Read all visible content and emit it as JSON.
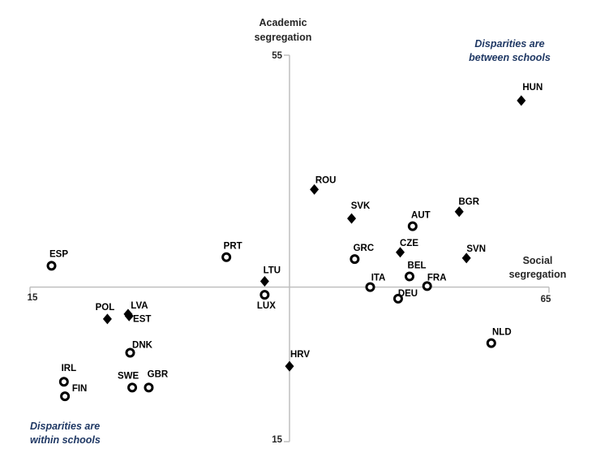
{
  "chart_data": {
    "type": "scatter",
    "title": "",
    "x_axis": {
      "label_lines": [
        "Social",
        "segregation"
      ],
      "min": 15,
      "max": 65,
      "min_label": "15",
      "max_label": "65"
    },
    "y_axis": {
      "label_lines": [
        "Academic",
        "segregation"
      ],
      "min": 15,
      "max": 55,
      "min_label": "15",
      "max_label": "55"
    },
    "axis_cross": {
      "x": 40,
      "y": 31
    },
    "colors": {
      "axis": "#bfbfbf",
      "marker": "#000000",
      "label": "#000000",
      "annotation": "#1f3864"
    },
    "legend_position": "none",
    "grid": false,
    "series": [
      {
        "name": "Disparities are between schools",
        "marker": "filled-diamond",
        "points": [
          {
            "code": "HUN",
            "x": 62.4,
            "y": 50.3,
            "label_dx": 14,
            "label_dy": -17
          },
          {
            "code": "ROU",
            "x": 42.4,
            "y": 41.1,
            "label_dx": 14,
            "label_dy": -12
          },
          {
            "code": "SVK",
            "x": 46.0,
            "y": 38.1,
            "label_dx": 11,
            "label_dy": -16
          },
          {
            "code": "BGR",
            "x": 56.4,
            "y": 38.8,
            "label_dx": 12,
            "label_dy": -13
          },
          {
            "code": "CZE",
            "x": 50.7,
            "y": 34.6,
            "label_dx": 11,
            "label_dy": -12
          },
          {
            "code": "SVN",
            "x": 57.1,
            "y": 34.0,
            "label_dx": 12,
            "label_dy": -12
          },
          {
            "code": "LTU",
            "x": 37.6,
            "y": 31.6,
            "label_dx": 9,
            "label_dy": -14
          },
          {
            "code": "POL",
            "x": 22.4,
            "y": 27.7,
            "label_dx": -3,
            "label_dy": -15
          },
          {
            "code": "LVA",
            "x": 24.4,
            "y": 28.2,
            "label_dx": 14,
            "label_dy": -11
          },
          {
            "code": "EST",
            "x": 24.5,
            "y": 28.0,
            "label_dx": 16,
            "label_dy": 3
          },
          {
            "code": "HRV",
            "x": 40.0,
            "y": 22.8,
            "label_dx": 13,
            "label_dy": -15
          }
        ]
      },
      {
        "name": "Disparities are within schools",
        "marker": "open-circle",
        "points": [
          {
            "code": "ESP",
            "x": 17.0,
            "y": 33.2,
            "label_dx": 9,
            "label_dy": -15
          },
          {
            "code": "PRT",
            "x": 33.9,
            "y": 34.1,
            "label_dx": 8,
            "label_dy": -14
          },
          {
            "code": "AUT",
            "x": 51.9,
            "y": 37.3,
            "label_dx": 10,
            "label_dy": -14
          },
          {
            "code": "GRC",
            "x": 46.3,
            "y": 33.9,
            "label_dx": 11,
            "label_dy": -14
          },
          {
            "code": "BEL",
            "x": 51.6,
            "y": 32.1,
            "label_dx": 9,
            "label_dy": -14
          },
          {
            "code": "ITA",
            "x": 47.8,
            "y": 31.0,
            "label_dx": 10,
            "label_dy": -12
          },
          {
            "code": "FRA",
            "x": 53.3,
            "y": 31.1,
            "label_dx": 12,
            "label_dy": -11
          },
          {
            "code": "DEU",
            "x": 50.5,
            "y": 29.8,
            "label_dx": 12,
            "label_dy": -7
          },
          {
            "code": "LUX",
            "x": 37.6,
            "y": 30.2,
            "label_dx": 2,
            "label_dy": 13
          },
          {
            "code": "NLD",
            "x": 59.5,
            "y": 25.2,
            "label_dx": 13,
            "label_dy": -14
          },
          {
            "code": "DNK",
            "x": 24.6,
            "y": 24.2,
            "label_dx": 15,
            "label_dy": -10
          },
          {
            "code": "IRL",
            "x": 18.2,
            "y": 21.2,
            "label_dx": 6,
            "label_dy": -17
          },
          {
            "code": "FIN",
            "x": 18.3,
            "y": 19.7,
            "label_dx": 18,
            "label_dy": -10
          },
          {
            "code": "SWE",
            "x": 24.8,
            "y": 20.6,
            "label_dx": -5,
            "label_dy": -15
          },
          {
            "code": "GBR",
            "x": 26.4,
            "y": 20.6,
            "label_dx": 11,
            "label_dy": -17
          }
        ]
      }
    ],
    "annotations": [
      {
        "id": "between",
        "lines": [
          "Disparities are",
          "between schools"
        ]
      },
      {
        "id": "within",
        "lines": [
          "Disparities are",
          "within schools"
        ]
      }
    ]
  }
}
